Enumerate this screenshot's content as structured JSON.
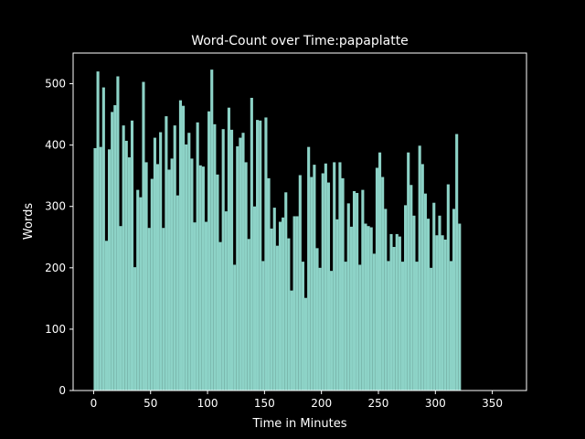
{
  "chart_data": {
    "type": "bar",
    "title": "Word-Count over Time:papaplatte",
    "xlabel": "Time in Minutes",
    "ylabel": "Words",
    "xlim": [
      -18,
      380
    ],
    "ylim": [
      0,
      550
    ],
    "xticks": [
      0,
      50,
      100,
      150,
      200,
      250,
      300,
      350
    ],
    "yticks": [
      0,
      100,
      200,
      300,
      400,
      500
    ],
    "bin_width": 2.5,
    "x_start": 0,
    "values": [
      395,
      520,
      397,
      494,
      244,
      393,
      454,
      465,
      512,
      268,
      432,
      407,
      380,
      440,
      201,
      327,
      315,
      503,
      372,
      265,
      345,
      412,
      369,
      421,
      265,
      447,
      360,
      378,
      432,
      318,
      473,
      464,
      401,
      420,
      378,
      274,
      437,
      367,
      365,
      275,
      455,
      523,
      434,
      352,
      242,
      426,
      292,
      461,
      425,
      205,
      398,
      412,
      420,
      372,
      247,
      477,
      300,
      441,
      440,
      211,
      445,
      346,
      264,
      298,
      236,
      275,
      282,
      323,
      248,
      163,
      284,
      284,
      351,
      210,
      151,
      397,
      348,
      368,
      232,
      200,
      354,
      370,
      339,
      195,
      372,
      279,
      372,
      346,
      210,
      305,
      267,
      325,
      322,
      205,
      327,
      272,
      268,
      266,
      223,
      363,
      388,
      348,
      296,
      211,
      255,
      234,
      255,
      251,
      210,
      302,
      388,
      335,
      285,
      210,
      399,
      369,
      321,
      280,
      200,
      306,
      253,
      285,
      253,
      246,
      336,
      211,
      296,
      418,
      272
    ],
    "bar_color": "#8dd3c7",
    "grid": false,
    "legend": "none"
  }
}
